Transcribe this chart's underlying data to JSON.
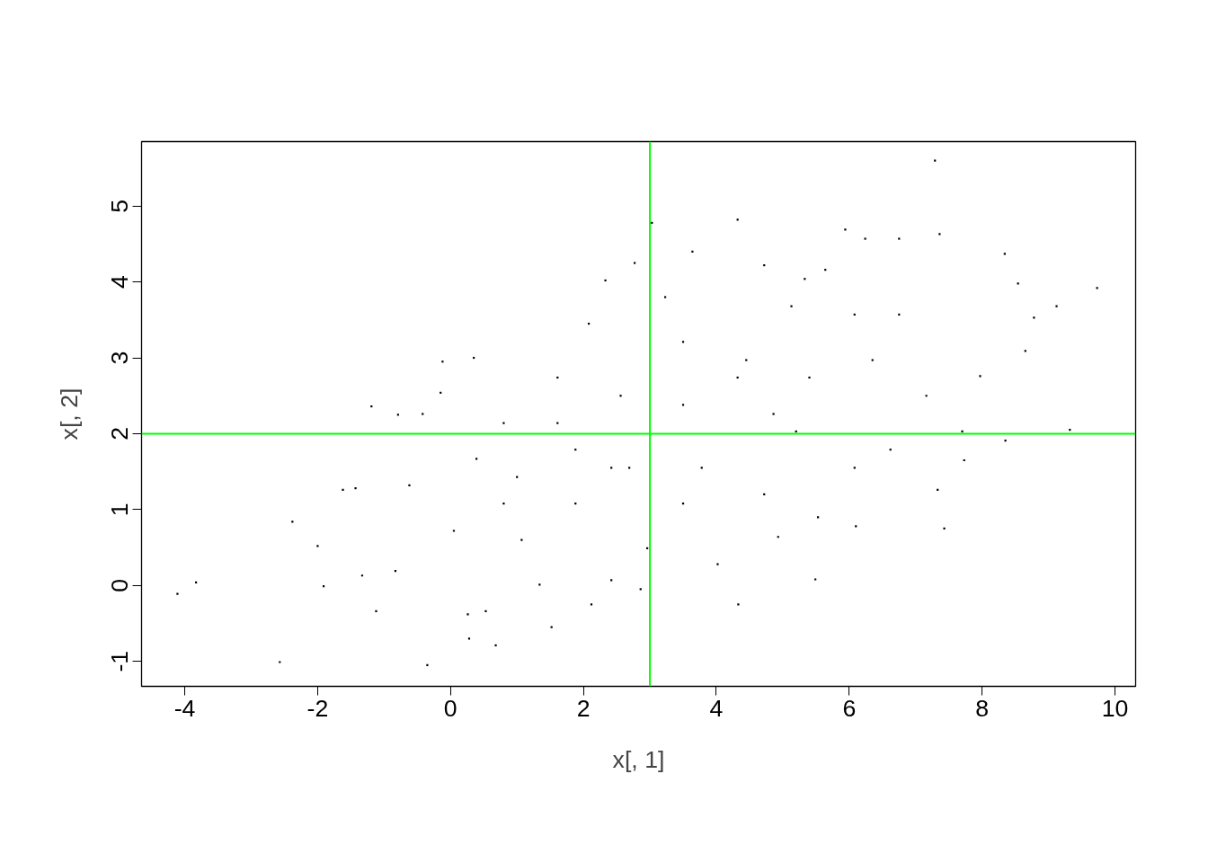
{
  "chart_data": {
    "type": "scatter",
    "xlabel": "x[, 1]",
    "ylabel": "x[, 2]",
    "xlim": [
      -4.65,
      10.31
    ],
    "ylim": [
      -1.33,
      5.85
    ],
    "xticks": [
      -4,
      -2,
      0,
      2,
      4,
      6,
      8,
      10
    ],
    "yticks": [
      -1,
      0,
      1,
      2,
      3,
      4,
      5
    ],
    "grid": false,
    "ref_lines": [
      {
        "axis": "x",
        "value": 3,
        "color": "#00ff00"
      },
      {
        "axis": "y",
        "value": 2,
        "color": "#00ff00"
      }
    ],
    "series": [
      {
        "color": "#000000",
        "x": [
          -4.11,
          -3.83,
          -2.57,
          -2.38,
          -2.0,
          -1.91,
          -1.62,
          -1.43,
          -1.12,
          -1.19,
          -1.33,
          -0.83,
          -0.79,
          -0.42,
          -0.62,
          -0.35,
          -0.15,
          -0.12,
          0.26,
          0.28,
          0.35,
          0.68,
          0.53,
          0.05,
          0.39,
          0.8,
          1.0,
          1.07,
          1.34,
          1.52,
          1.61,
          1.88,
          2.08,
          2.12,
          2.33,
          2.42,
          2.77,
          2.86,
          2.69,
          2.56,
          2.96,
          3.03,
          3.23,
          3.5,
          3.64,
          3.78,
          4.02,
          4.32,
          4.33,
          4.45,
          4.72,
          4.93,
          4.72,
          5.13,
          5.2,
          5.33,
          5.49,
          5.64,
          5.53,
          5.94,
          6.08,
          6.1,
          6.24,
          6.35,
          6.75,
          6.62,
          7.29,
          7.36,
          7.33,
          7.43,
          7.16,
          7.7,
          7.73,
          7.97,
          8.34,
          8.35,
          8.54,
          8.65,
          8.78,
          9.12,
          9.32,
          9.73,
          1.61,
          3.5,
          4.32,
          4.86,
          2.42,
          1.88,
          0.8,
          3.5,
          5.4,
          6.08,
          6.75
        ],
        "values": [
          -0.11,
          0.04,
          -1.01,
          0.84,
          0.52,
          -0.01,
          1.26,
          1.28,
          -0.34,
          2.36,
          0.13,
          0.19,
          2.25,
          2.26,
          1.32,
          -1.05,
          2.54,
          2.95,
          -0.38,
          -0.7,
          3.0,
          -0.79,
          -0.34,
          0.72,
          1.67,
          2.14,
          1.43,
          0.6,
          0.01,
          -0.55,
          2.74,
          1.79,
          3.45,
          -0.25,
          4.02,
          0.07,
          4.25,
          -0.05,
          1.55,
          2.5,
          0.49,
          4.78,
          3.8,
          2.38,
          4.4,
          1.55,
          0.28,
          4.82,
          -0.25,
          2.97,
          1.2,
          0.64,
          4.22,
          3.68,
          2.03,
          4.04,
          0.08,
          4.16,
          0.9,
          4.69,
          1.55,
          0.78,
          4.57,
          2.97,
          4.57,
          1.79,
          5.6,
          4.63,
          1.26,
          0.75,
          2.5,
          2.03,
          1.65,
          2.76,
          4.37,
          1.91,
          3.98,
          3.09,
          3.53,
          3.68,
          2.05,
          3.92,
          2.14,
          3.21,
          2.74,
          2.26,
          1.55,
          1.08,
          1.08,
          1.08,
          2.74,
          3.57,
          3.57
        ]
      }
    ]
  }
}
